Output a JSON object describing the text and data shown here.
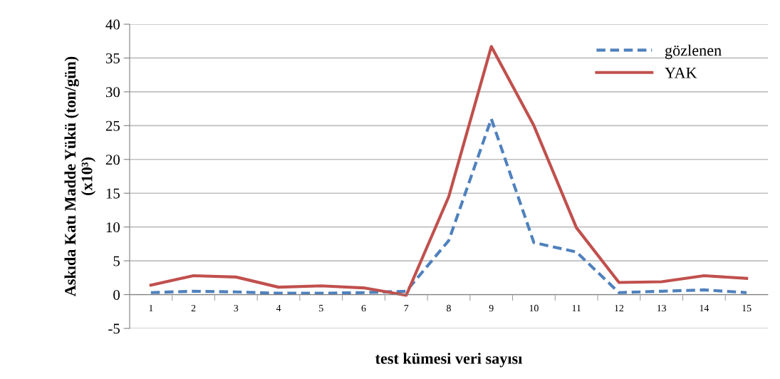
{
  "chart_data": {
    "type": "line",
    "xlabel": "test kümesi veri sayısı",
    "ylabel": "Askıda Katı Madde Yükü (ton/gün)\n(x10³)",
    "categories": [
      "1",
      "2",
      "3",
      "4",
      "5",
      "6",
      "7",
      "8",
      "9",
      "10",
      "11",
      "12",
      "13",
      "14",
      "15"
    ],
    "series": [
      {
        "name": "gözlenen",
        "color": "#4f81bd",
        "line_style": "dashed",
        "values": [
          0.3,
          0.5,
          0.4,
          0.2,
          0.2,
          0.3,
          0.5,
          8.0,
          26,
          7.7,
          6.3,
          0.3,
          0.5,
          0.7,
          0.3
        ]
      },
      {
        "name": "YAK",
        "color": "#c0504d",
        "line_style": "solid",
        "values": [
          1.4,
          2.8,
          2.6,
          1.1,
          1.3,
          1.0,
          -0.1,
          14.5,
          36.7,
          25,
          9.9,
          1.8,
          1.9,
          2.8,
          2.4
        ]
      }
    ],
    "ylim": [
      -5,
      40
    ],
    "yticks": [
      -5,
      0,
      5,
      10,
      15,
      20,
      25,
      30,
      35,
      40
    ],
    "grid": "y",
    "legend": "top right",
    "marker": "none"
  }
}
